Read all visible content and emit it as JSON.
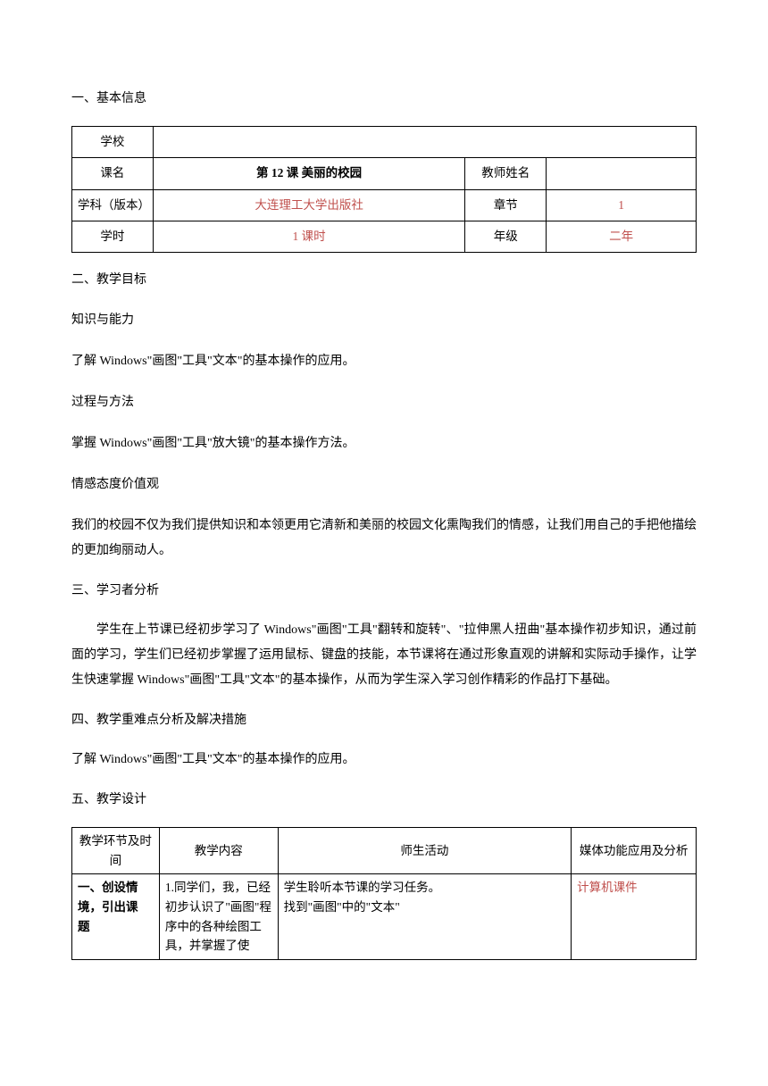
{
  "section1": {
    "title": "一、基本信息",
    "table": {
      "rows": [
        {
          "label": "学校",
          "value": "",
          "label2": "",
          "value2": ""
        },
        {
          "label": "课名",
          "value": "第 12 课  美丽的校园",
          "label2": "教师姓名",
          "value2": ""
        },
        {
          "label": "学科（版本）",
          "value": "大连理工大学出版社",
          "label2": "章节",
          "value2": "1"
        },
        {
          "label": "学时",
          "value": "1 课时",
          "label2": "年级",
          "value2": "二年"
        }
      ]
    }
  },
  "section2": {
    "title": "二、教学目标",
    "sub1": {
      "heading": "知识与能力",
      "text": "了解 Windows\"画图\"工具\"文本\"的基本操作的应用。"
    },
    "sub2": {
      "heading": "过程与方法",
      "text": "掌握 Windows\"画图\"工具\"放大镜\"的基本操作方法。"
    },
    "sub3": {
      "heading": "情感态度价值观",
      "text": "我们的校园不仅为我们提供知识和本领更用它清新和美丽的校园文化熏陶我们的情感，让我们用自己的手把他描绘的更加绚丽动人。"
    }
  },
  "section3": {
    "title": "三、学习者分析",
    "text": "学生在上节课已经初步学习了 Windows\"画图\"工具\"翻转和旋转\"、\"拉伸黑人扭曲\"基本操作初步知识，通过前面的学习，学生们已经初步掌握了运用鼠标、键盘的技能，本节课将在通过形象直观的讲解和实际动手操作，让学生快速掌握 Windows\"画图\"工具\"文本\"的基本操作，从而为学生深入学习创作精彩的作品打下基础。"
  },
  "section4": {
    "title": "四、教学重难点分析及解决措施",
    "text": "了解 Windows\"画图\"工具\"文本\"的基本操作的应用。"
  },
  "section5": {
    "title": "五、教学设计",
    "table": {
      "headers": {
        "col1": "教学环节及时间",
        "col2": "教学内容",
        "col3": "师生活动",
        "col4": "媒体功能应用及分析"
      },
      "row1": {
        "col1a": "一、创设情",
        "col1b": "境，引出课",
        "col1c": "题",
        "col2": "1.同学们，我，已经初步认识了\"画图\"程序中的各种绘图工具，并掌握了使",
        "col3a": "学生聆听本节课的学习任务。",
        "col3b": "找到\"画图\"中的\"文本\"",
        "col4": "计算机课件"
      }
    }
  }
}
